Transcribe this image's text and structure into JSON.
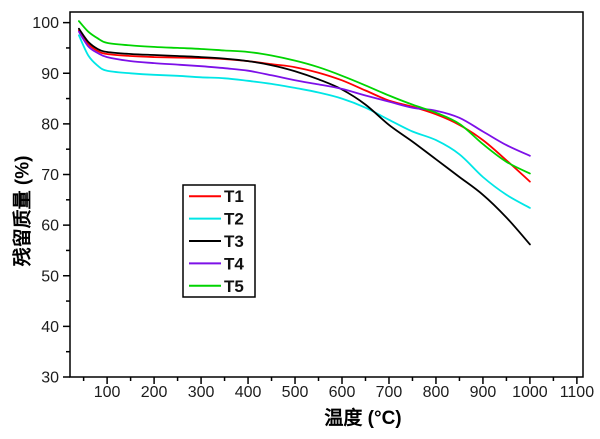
{
  "chart_data": {
    "type": "line",
    "title": "",
    "xlabel": "温度 (°C)",
    "ylabel": "残留质量 (%)",
    "xlim": [
      21,
      1113
    ],
    "ylim": [
      30,
      102.1
    ],
    "xticks": [
      100,
      200,
      300,
      400,
      500,
      600,
      700,
      800,
      900,
      1000,
      1100
    ],
    "yticks": [
      30,
      40,
      50,
      60,
      70,
      80,
      90,
      100
    ],
    "x_minor_step": 50,
    "y_minor_step": 5,
    "grid": false,
    "frame": true,
    "legend_position": "inside-left-center",
    "axis_color": "#000000",
    "tick_label_color": "#1c1c1c",
    "legend_text_color": "#111111",
    "x": [
      40,
      60,
      80,
      100,
      150,
      200,
      250,
      300,
      350,
      400,
      450,
      500,
      550,
      600,
      650,
      700,
      750,
      800,
      850,
      900,
      950,
      1000
    ],
    "series": [
      {
        "name": "T1",
        "color": "#ff0000",
        "values": [
          98.5,
          95.8,
          94.4,
          93.8,
          93.4,
          93.2,
          93.1,
          93.0,
          92.8,
          92.4,
          91.8,
          91.2,
          90.1,
          88.6,
          86.6,
          84.6,
          83.4,
          81.9,
          79.8,
          76.8,
          72.8,
          68.6
        ]
      },
      {
        "name": "T2",
        "color": "#00e6e6",
        "values": [
          97.5,
          93.5,
          91.5,
          90.5,
          90.0,
          89.7,
          89.5,
          89.2,
          89.0,
          88.5,
          87.9,
          87.1,
          86.2,
          85.0,
          83.2,
          80.8,
          78.5,
          76.8,
          74.0,
          69.5,
          66.0,
          63.4
        ]
      },
      {
        "name": "T3",
        "color": "#000000",
        "values": [
          98.8,
          96.2,
          94.8,
          94.2,
          93.8,
          93.6,
          93.4,
          93.2,
          92.9,
          92.4,
          91.6,
          90.4,
          88.8,
          86.8,
          83.8,
          79.8,
          76.5,
          73.0,
          69.5,
          66.0,
          61.5,
          56.2
        ]
      },
      {
        "name": "T4",
        "color": "#7d10e8",
        "values": [
          98.2,
          95.3,
          94.0,
          93.2,
          92.4,
          92.0,
          91.7,
          91.4,
          91.0,
          90.5,
          89.6,
          88.6,
          87.8,
          86.9,
          85.6,
          84.4,
          83.2,
          82.6,
          81.2,
          78.5,
          75.8,
          73.7
        ]
      },
      {
        "name": "T5",
        "color": "#00d400",
        "values": [
          100.3,
          98.2,
          96.9,
          96.0,
          95.5,
          95.2,
          95.0,
          94.8,
          94.5,
          94.2,
          93.5,
          92.5,
          91.2,
          89.5,
          87.6,
          85.6,
          83.8,
          82.2,
          80.0,
          76.0,
          72.5,
          70.2
        ]
      }
    ]
  }
}
